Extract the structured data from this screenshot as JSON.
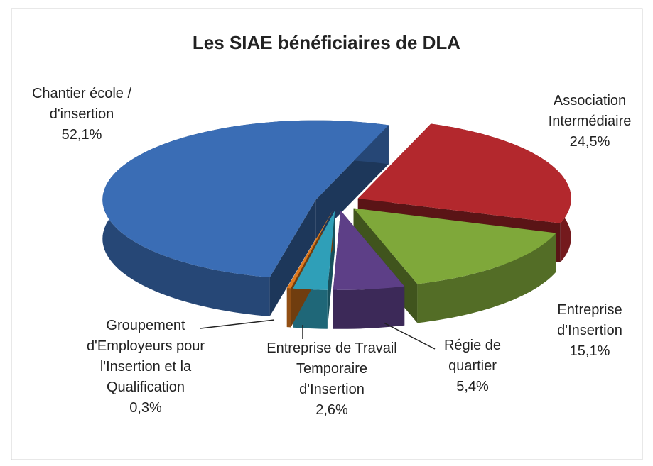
{
  "chart_data": {
    "type": "pie",
    "title": "Les SIAE bénéficiaires de DLA",
    "categories": [
      "Association Intermédiaire",
      "Entreprise d'Insertion",
      "Régie de quartier",
      "Entreprise de Travail Temporaire d'Insertion",
      "Groupement d'Employeurs pour l'Insertion et la Qualification",
      "Chantier école / d'insertion"
    ],
    "values": [
      24.5,
      15.1,
      5.4,
      2.6,
      0.3,
      52.1
    ],
    "value_labels": [
      "24,5%",
      "15,1%",
      "5,4%",
      "2,6%",
      "0,3%",
      "52,1%"
    ],
    "colors": [
      "#b3282d",
      "#7fa83a",
      "#5d3f87",
      "#2f9fb8",
      "#e07a1e",
      "#3a6db5"
    ]
  }
}
